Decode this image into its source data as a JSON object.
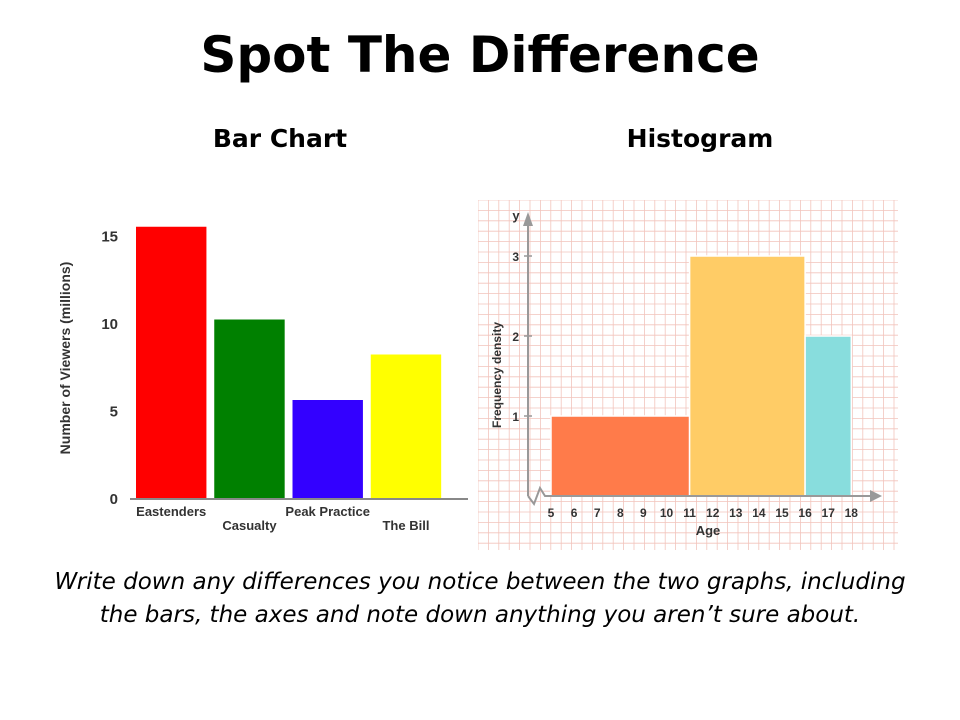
{
  "title": "Spot The Difference",
  "instructions": "Write down any differences you notice between the two graphs, including the bars, the axes and note down anything you aren’t sure about.",
  "chart_data": [
    {
      "type": "bar",
      "heading": "Bar Chart",
      "ylabel": "Number of Viewers (millions)",
      "xlabel": "",
      "categories": [
        "Eastenders",
        "Casualty",
        "Peak Practice",
        "The Bill"
      ],
      "values": [
        15.5,
        10.2,
        5.6,
        8.2
      ],
      "colors": [
        "#ff0000",
        "#008000",
        "#3300ff",
        "#ffff00"
      ],
      "yticks": [
        0,
        5,
        10,
        15
      ],
      "ylim": [
        0,
        16
      ]
    },
    {
      "type": "bar",
      "heading": "Histogram",
      "ylabel": "Frequency density",
      "xlabel": "Age",
      "x_axis_letter": "y",
      "bins": [
        {
          "start": 5,
          "end": 11,
          "density": 1,
          "color": "#ff7b4a"
        },
        {
          "start": 11,
          "end": 16,
          "density": 3,
          "color": "#ffcc66"
        },
        {
          "start": 16,
          "end": 18,
          "density": 2,
          "color": "#88dddd"
        }
      ],
      "xticks": [
        5,
        6,
        7,
        8,
        9,
        10,
        11,
        12,
        13,
        14,
        15,
        16,
        17,
        18
      ],
      "yticks": [
        1,
        2,
        3
      ],
      "xlim": [
        5,
        18
      ],
      "ylim": [
        0,
        3.5
      ],
      "grid": true
    }
  ]
}
